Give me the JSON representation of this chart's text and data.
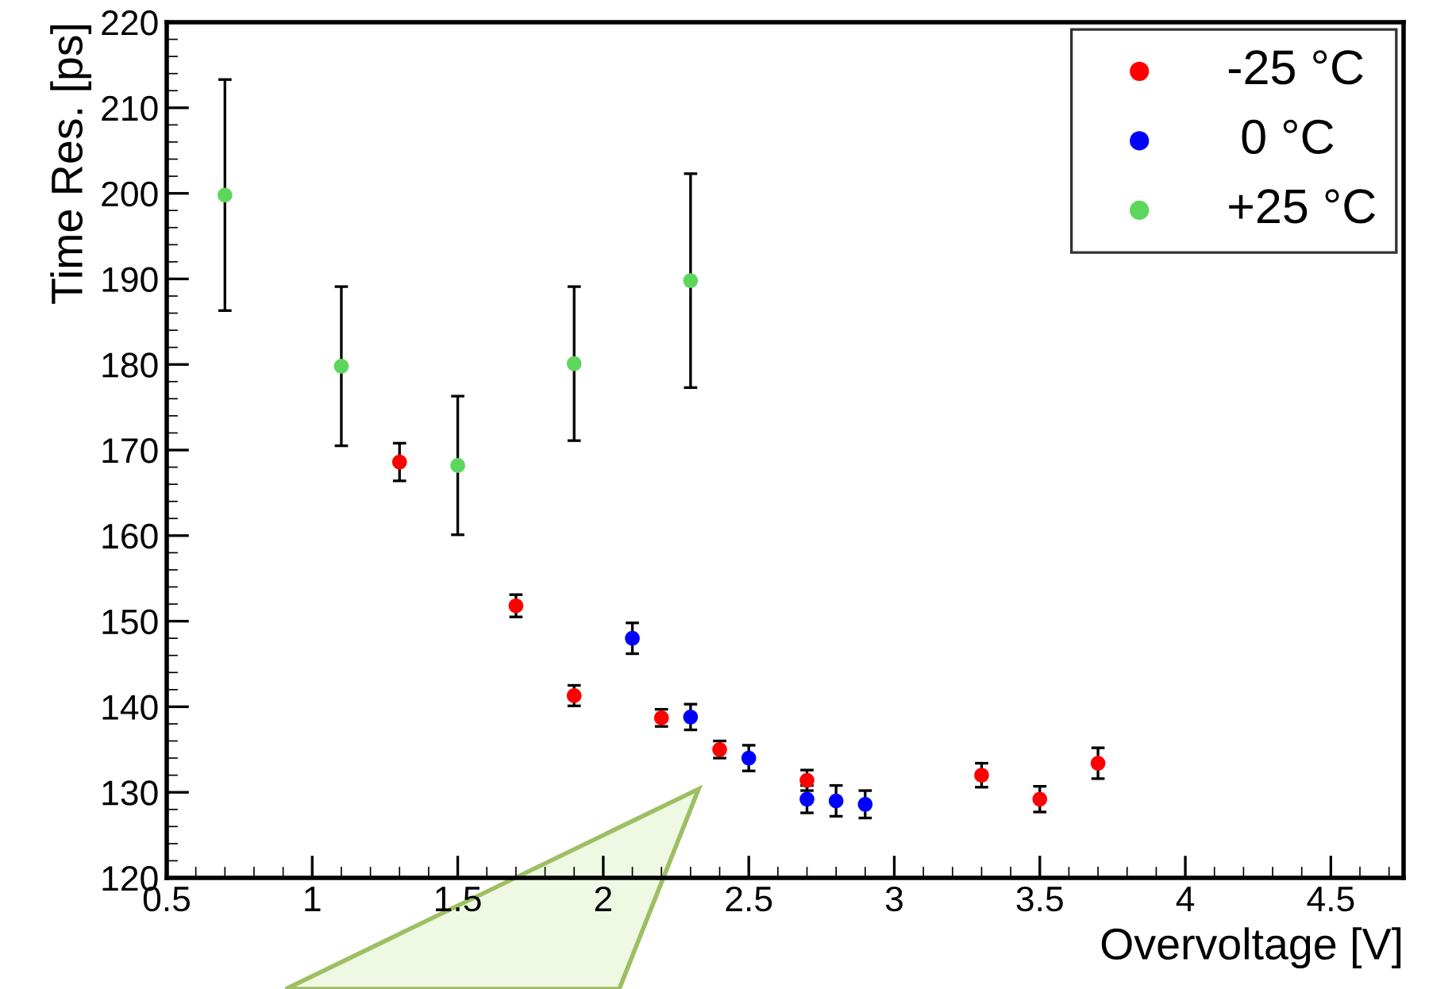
{
  "chart_data": {
    "type": "scatter",
    "xlabel": "Overvoltage [V]",
    "ylabel": "Time Res. [ps]",
    "xlim": [
      0.5,
      4.75
    ],
    "ylim": [
      120,
      220
    ],
    "xticks": [
      0.5,
      1,
      1.5,
      2,
      2.5,
      3,
      3.5,
      4,
      4.5
    ],
    "yticks": [
      120,
      130,
      140,
      150,
      160,
      170,
      180,
      190,
      200,
      210,
      220
    ],
    "grid": false,
    "legend": "top right",
    "marker": "circle",
    "series": [
      {
        "name": "-25 °C",
        "color": "#ff0000",
        "x": [
          1.3,
          1.7,
          1.9,
          2.2,
          2.4,
          2.7,
          3.3,
          3.5,
          3.7
        ],
        "values": [
          168.6,
          151.8,
          141.3,
          138.7,
          135.0,
          131.4,
          132.0,
          129.2,
          133.4
        ],
        "errors": [
          2.2,
          1.3,
          1.2,
          1.0,
          1.0,
          1.2,
          1.4,
          1.5,
          1.8
        ]
      },
      {
        "name": " 0 °C",
        "color": "#0000ff",
        "x": [
          2.1,
          2.3,
          2.5,
          2.7,
          2.8,
          2.9
        ],
        "values": [
          148.0,
          138.8,
          134.0,
          129.2,
          129.0,
          128.6
        ],
        "errors": [
          1.8,
          1.5,
          1.5,
          1.6,
          1.8,
          1.6
        ]
      },
      {
        "name": "+25 °C",
        "color": "#5cd65c",
        "x": [
          0.7,
          1.1,
          1.5,
          1.9,
          2.3
        ],
        "values": [
          199.8,
          179.8,
          168.2,
          180.1,
          189.8
        ],
        "errors": [
          13.5,
          9.3,
          8.1,
          9.0,
          12.5
        ]
      }
    ]
  }
}
